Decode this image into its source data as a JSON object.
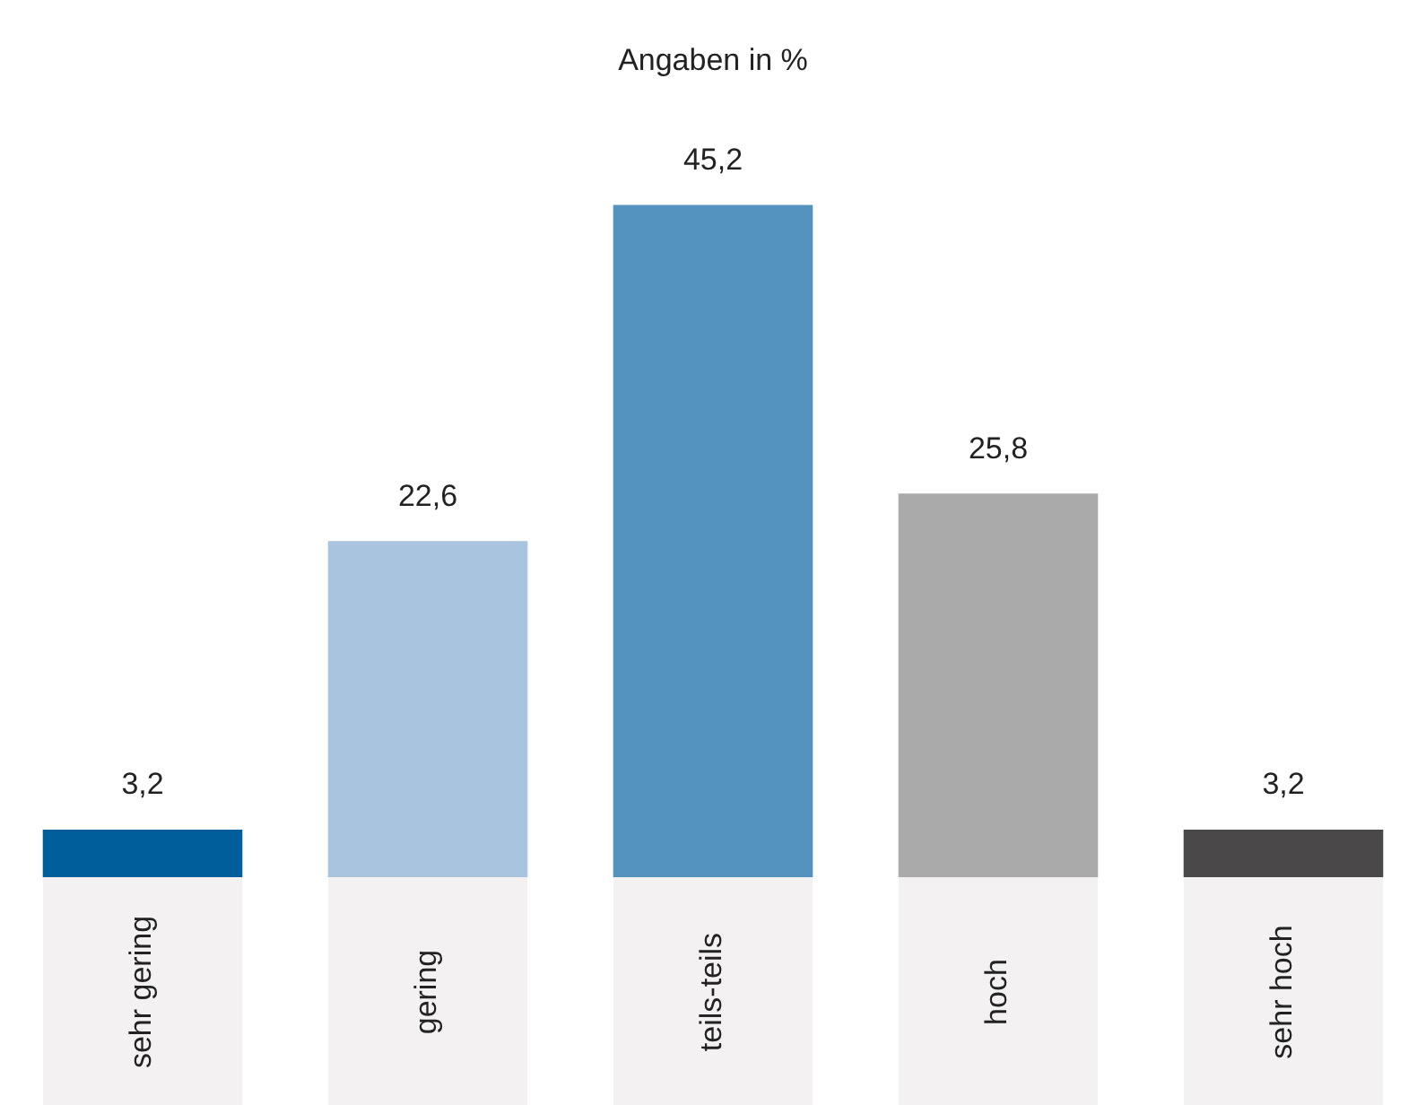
{
  "chart_data": {
    "type": "bar",
    "title": "Angaben in %",
    "categories": [
      "sehr gering",
      "gering",
      "teils-teils",
      "hoch",
      "sehr hoch"
    ],
    "values": [
      3.2,
      22.6,
      45.2,
      25.8,
      3.2
    ],
    "colors": [
      "#005f9b",
      "#a8c4df",
      "#5493c0",
      "#aaaaab",
      "#4a4849"
    ],
    "value_labels": [
      "3,2",
      "22,6",
      "45,2",
      "25,8",
      "3,2"
    ],
    "legend": false
  }
}
